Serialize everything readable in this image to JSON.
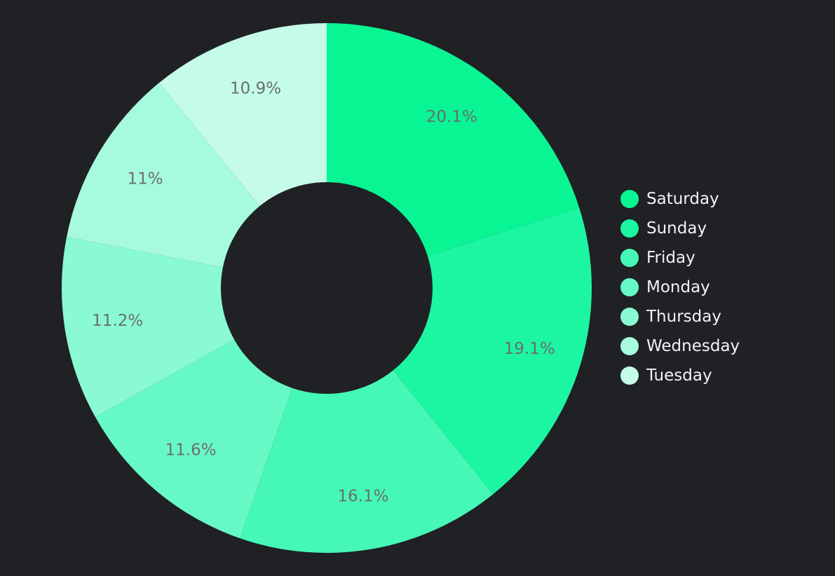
{
  "chart_data": {
    "type": "pie",
    "variant": "donut",
    "categories": [
      "Saturday",
      "Sunday",
      "Friday",
      "Monday",
      "Thursday",
      "Wednesday",
      "Tuesday"
    ],
    "values": [
      20.1,
      19.1,
      16.1,
      11.6,
      11.2,
      11.0,
      10.9
    ],
    "labels": [
      "20.1%",
      "19.1%",
      "16.1%",
      "11.6%",
      "11.2%",
      "11%",
      "10.9%"
    ],
    "colors": [
      "#09f593",
      "#1cf6a3",
      "#45f8b6",
      "#67f9c5",
      "#89fad2",
      "#a6fbdd",
      "#c4fce7"
    ],
    "legend": "right",
    "background": "#202124",
    "label_color": "#6b6e70",
    "legend_text_color": "#f1f3f4"
  }
}
